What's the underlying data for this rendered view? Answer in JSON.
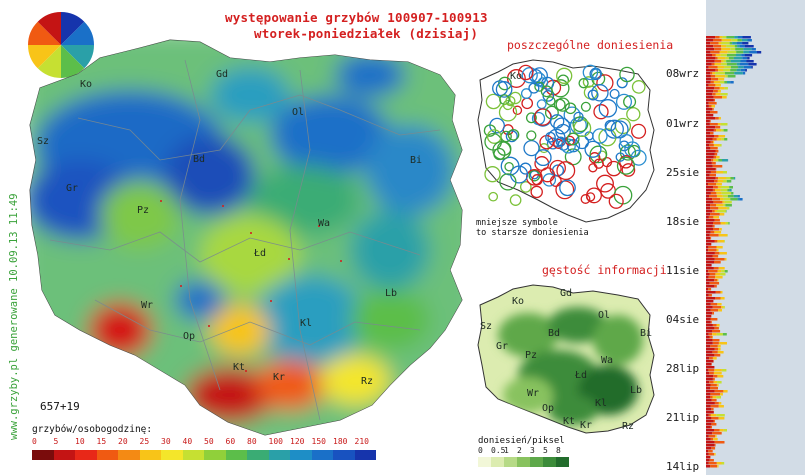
{
  "header": {
    "title_line1": "występowanie grzybów 100907-100913",
    "title_line2": "wtorek-poniedziałek (dzisiaj)"
  },
  "side_label": "www.grzyby.pl generowane 10.09.13 11:49",
  "main_map": {
    "count": "657+19",
    "cities": [
      "Ko",
      "Gd",
      "Sz",
      "Ol",
      "Bd",
      "Bi",
      "Gr",
      "Pz",
      "Wa",
      "Łd",
      "Lb",
      "Wr",
      "Kl",
      "Op",
      "Kt",
      "Kr",
      "Rz"
    ]
  },
  "legend": {
    "title": "grzybów/osobogodzinę:",
    "values": [
      "0",
      "5",
      "10",
      "15",
      "20",
      "25",
      "30",
      "40",
      "50",
      "60",
      "80",
      "100",
      "120",
      "150",
      "180",
      "210"
    ],
    "colors": [
      "#7a0c0c",
      "#c41414",
      "#e82818",
      "#f05a12",
      "#f48a14",
      "#f8c418",
      "#f4e62a",
      "#c6e032",
      "#90d03a",
      "#5cbe4a",
      "#3aac74",
      "#2aa0a8",
      "#1e8ec6",
      "#1a70c8",
      "#1852c0",
      "#1634ac"
    ]
  },
  "reports": {
    "title": "poszczególne doniesienia",
    "note_line1": "mniejsze symbole",
    "note_line2": "to starsze doniesienia",
    "cities": [
      "Ko"
    ]
  },
  "density": {
    "title": "gęstość informacji",
    "legend_title": "doniesień/piksel",
    "values": [
      "0",
      "0.5",
      "1",
      "2",
      "3",
      "5",
      "8"
    ],
    "colors": [
      "#f2f7d8",
      "#dcecb0",
      "#b6da86",
      "#88c25e",
      "#5ea84a",
      "#3c8c3a",
      "#226c2c"
    ],
    "cities": [
      "Ko",
      "Gd",
      "Sz",
      "Ol",
      "Bd",
      "Bi",
      "Gr",
      "Pz",
      "Wa",
      "Łd",
      "Lb",
      "Wr",
      "Kl",
      "Op",
      "Kt",
      "Kr",
      "Rz"
    ]
  },
  "timeline": {
    "dates": [
      "08wrz",
      "01wrz",
      "25sie",
      "18sie",
      "11sie",
      "04sie",
      "28lip",
      "21lip",
      "14lip"
    ]
  }
}
